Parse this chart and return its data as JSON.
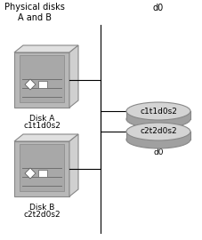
{
  "title_left": "Physical disks\nA and B",
  "title_right": "d0",
  "disk_a_label1": "Disk A",
  "disk_a_label2": "c1t1d0s2",
  "disk_b_label1": "Disk B",
  "disk_b_label2": "c2t2d0s2",
  "slice_top_label": "c1t1d0s2",
  "slice_bot_label": "c2t2d0s2",
  "slice_group_label": "d0",
  "bg_color": "#ffffff",
  "disk_front_color": "#b8b8b8",
  "disk_front_panel": "#a8a8a8",
  "disk_top_color": "#e0e0e0",
  "disk_right_color": "#d0d0d0",
  "disk_edge": "#888888",
  "slice_top_color": "#d4d4d4",
  "slice_side_color": "#a0a0a0",
  "slice_edge": "#888888",
  "line_color": "#000000",
  "divider_color": "#000000",
  "font_size_title": 7.0,
  "font_size_label": 6.5,
  "font_size_slice": 6.5
}
